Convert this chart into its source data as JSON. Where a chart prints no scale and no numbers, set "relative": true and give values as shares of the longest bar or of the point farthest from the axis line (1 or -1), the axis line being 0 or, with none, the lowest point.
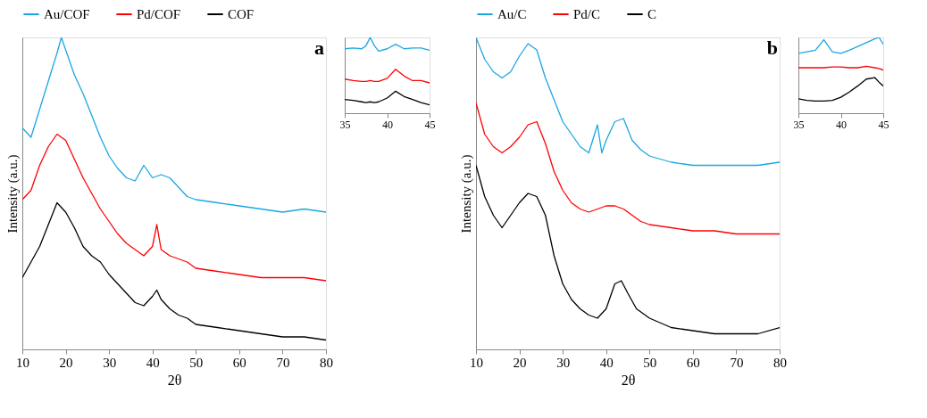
{
  "chart_data": [
    {
      "type": "line",
      "relative": true,
      "xlabel": "2θ",
      "ylabel": "Intensity  (a.u.)",
      "xlim": [
        10,
        80
      ],
      "xticks": [
        10,
        20,
        30,
        40,
        50,
        60,
        70,
        80
      ],
      "tick_labels": "x",
      "grid": false,
      "legend": "top",
      "annotations": [
        "a"
      ],
      "series": [
        {
          "name": "Au/COF",
          "color": "#1aa7e0",
          "x": [
            10,
            12,
            14,
            16,
            18,
            19,
            20,
            22,
            24,
            26,
            28,
            30,
            32,
            34,
            36,
            38,
            40,
            42,
            44,
            46,
            48,
            50,
            55,
            60,
            65,
            70,
            75,
            80
          ],
          "values": [
            0.71,
            0.68,
            0.77,
            0.86,
            0.95,
            1.0,
            0.96,
            0.88,
            0.82,
            0.75,
            0.68,
            0.62,
            0.58,
            0.55,
            0.54,
            0.59,
            0.55,
            0.56,
            0.55,
            0.52,
            0.49,
            0.48,
            0.47,
            0.46,
            0.45,
            0.44,
            0.45,
            0.44
          ]
        },
        {
          "name": "Pd/COF",
          "color": "#ff0000",
          "x": [
            10,
            12,
            14,
            16,
            18,
            20,
            22,
            24,
            26,
            28,
            30,
            32,
            34,
            36,
            38,
            40,
            41,
            42,
            44,
            46,
            48,
            50,
            55,
            60,
            65,
            70,
            75,
            80
          ],
          "values": [
            0.48,
            0.51,
            0.59,
            0.65,
            0.69,
            0.67,
            0.61,
            0.55,
            0.5,
            0.45,
            0.41,
            0.37,
            0.34,
            0.32,
            0.3,
            0.33,
            0.4,
            0.32,
            0.3,
            0.29,
            0.28,
            0.26,
            0.25,
            0.24,
            0.23,
            0.23,
            0.23,
            0.22
          ]
        },
        {
          "name": "COF",
          "color": "#000000",
          "x": [
            10,
            12,
            14,
            16,
            18,
            20,
            22,
            24,
            26,
            28,
            30,
            32,
            34,
            36,
            38,
            40,
            41,
            42,
            44,
            46,
            48,
            50,
            55,
            60,
            65,
            70,
            75,
            80
          ],
          "values": [
            0.23,
            0.28,
            0.33,
            0.4,
            0.47,
            0.44,
            0.39,
            0.33,
            0.3,
            0.28,
            0.24,
            0.21,
            0.18,
            0.15,
            0.14,
            0.17,
            0.19,
            0.16,
            0.13,
            0.11,
            0.1,
            0.08,
            0.07,
            0.06,
            0.05,
            0.04,
            0.04,
            0.03
          ]
        }
      ]
    },
    {
      "type": "line",
      "relative": true,
      "xlim": [
        35,
        45
      ],
      "xticks": [
        35,
        40,
        45
      ],
      "tick_labels": "x",
      "grid": false,
      "series": [
        {
          "color": "#1aa7e0",
          "x": [
            35,
            36,
            37,
            37.5,
            38,
            38.5,
            39,
            40,
            41,
            42,
            43,
            44,
            45
          ],
          "values": [
            0.85,
            0.86,
            0.85,
            0.89,
            1.0,
            0.89,
            0.82,
            0.85,
            0.91,
            0.85,
            0.86,
            0.86,
            0.83
          ]
        },
        {
          "color": "#ff0000",
          "x": [
            35,
            36,
            37,
            37.5,
            38,
            38.5,
            39,
            40,
            41,
            42,
            43,
            44,
            45
          ],
          "values": [
            0.45,
            0.43,
            0.42,
            0.42,
            0.43,
            0.42,
            0.42,
            0.46,
            0.58,
            0.49,
            0.43,
            0.43,
            0.4
          ]
        },
        {
          "color": "#000000",
          "x": [
            35,
            36,
            37,
            37.5,
            38,
            38.5,
            39,
            40,
            41,
            42,
            43,
            44,
            45
          ],
          "values": [
            0.18,
            0.17,
            0.15,
            0.14,
            0.15,
            0.14,
            0.15,
            0.2,
            0.29,
            0.22,
            0.18,
            0.14,
            0.11
          ]
        }
      ]
    },
    {
      "type": "line",
      "relative": true,
      "xlabel": "2θ",
      "ylabel": "Intensity  (a.u.)",
      "xlim": [
        10,
        80
      ],
      "xticks": [
        10,
        20,
        30,
        40,
        50,
        60,
        70,
        80
      ],
      "tick_labels": "x",
      "grid": false,
      "legend": "top",
      "annotations": [
        "b"
      ],
      "series": [
        {
          "name": "Au/C",
          "color": "#1aa7e0",
          "x": [
            10,
            12,
            14,
            16,
            18,
            20,
            22,
            24,
            26,
            28,
            30,
            32,
            34,
            36,
            38,
            39,
            40,
            42,
            44,
            46,
            48,
            50,
            55,
            60,
            65,
            70,
            75,
            80
          ],
          "values": [
            1.0,
            0.93,
            0.89,
            0.87,
            0.89,
            0.94,
            0.98,
            0.96,
            0.87,
            0.8,
            0.73,
            0.69,
            0.65,
            0.63,
            0.72,
            0.63,
            0.67,
            0.73,
            0.74,
            0.67,
            0.64,
            0.62,
            0.6,
            0.59,
            0.59,
            0.59,
            0.59,
            0.6
          ]
        },
        {
          "name": "Pd/C",
          "color": "#ff0000",
          "x": [
            10,
            12,
            14,
            16,
            18,
            20,
            22,
            24,
            26,
            28,
            30,
            32,
            34,
            36,
            38,
            40,
            42,
            44,
            46,
            48,
            50,
            55,
            60,
            65,
            70,
            75,
            80
          ],
          "values": [
            0.79,
            0.69,
            0.65,
            0.63,
            0.65,
            0.68,
            0.72,
            0.73,
            0.66,
            0.57,
            0.51,
            0.47,
            0.45,
            0.44,
            0.45,
            0.46,
            0.46,
            0.45,
            0.43,
            0.41,
            0.4,
            0.39,
            0.38,
            0.38,
            0.37,
            0.37,
            0.37
          ]
        },
        {
          "name": "C",
          "color": "#000000",
          "x": [
            10,
            12,
            14,
            16,
            18,
            20,
            22,
            24,
            26,
            28,
            30,
            32,
            34,
            36,
            38,
            40,
            42,
            43.5,
            45,
            47,
            50,
            55,
            60,
            65,
            70,
            75,
            80
          ],
          "values": [
            0.59,
            0.49,
            0.43,
            0.39,
            0.43,
            0.47,
            0.5,
            0.49,
            0.43,
            0.3,
            0.21,
            0.16,
            0.13,
            0.11,
            0.1,
            0.13,
            0.21,
            0.22,
            0.18,
            0.13,
            0.1,
            0.07,
            0.06,
            0.05,
            0.05,
            0.05,
            0.07
          ]
        }
      ]
    },
    {
      "type": "line",
      "relative": true,
      "xlim": [
        35,
        45
      ],
      "xticks": [
        35,
        40,
        45
      ],
      "tick_labels": "x",
      "grid": false,
      "series": [
        {
          "color": "#1aa7e0",
          "x": [
            35,
            36,
            37,
            38,
            39,
            40,
            41,
            42,
            43,
            44,
            44.5,
            45
          ],
          "values": [
            0.79,
            0.81,
            0.83,
            0.97,
            0.81,
            0.79,
            0.83,
            0.88,
            0.93,
            0.98,
            1.0,
            0.91
          ]
        },
        {
          "color": "#ff0000",
          "x": [
            35,
            36,
            37,
            38,
            39,
            40,
            41,
            42,
            43,
            44,
            44.5,
            45
          ],
          "values": [
            0.6,
            0.6,
            0.6,
            0.6,
            0.61,
            0.61,
            0.6,
            0.6,
            0.62,
            0.6,
            0.59,
            0.57
          ]
        },
        {
          "color": "#000000",
          "x": [
            35,
            36,
            37,
            38,
            39,
            40,
            41,
            42,
            43,
            44,
            44.5,
            45
          ],
          "values": [
            0.19,
            0.17,
            0.16,
            0.16,
            0.17,
            0.21,
            0.28,
            0.36,
            0.45,
            0.47,
            0.41,
            0.36
          ]
        }
      ]
    }
  ]
}
